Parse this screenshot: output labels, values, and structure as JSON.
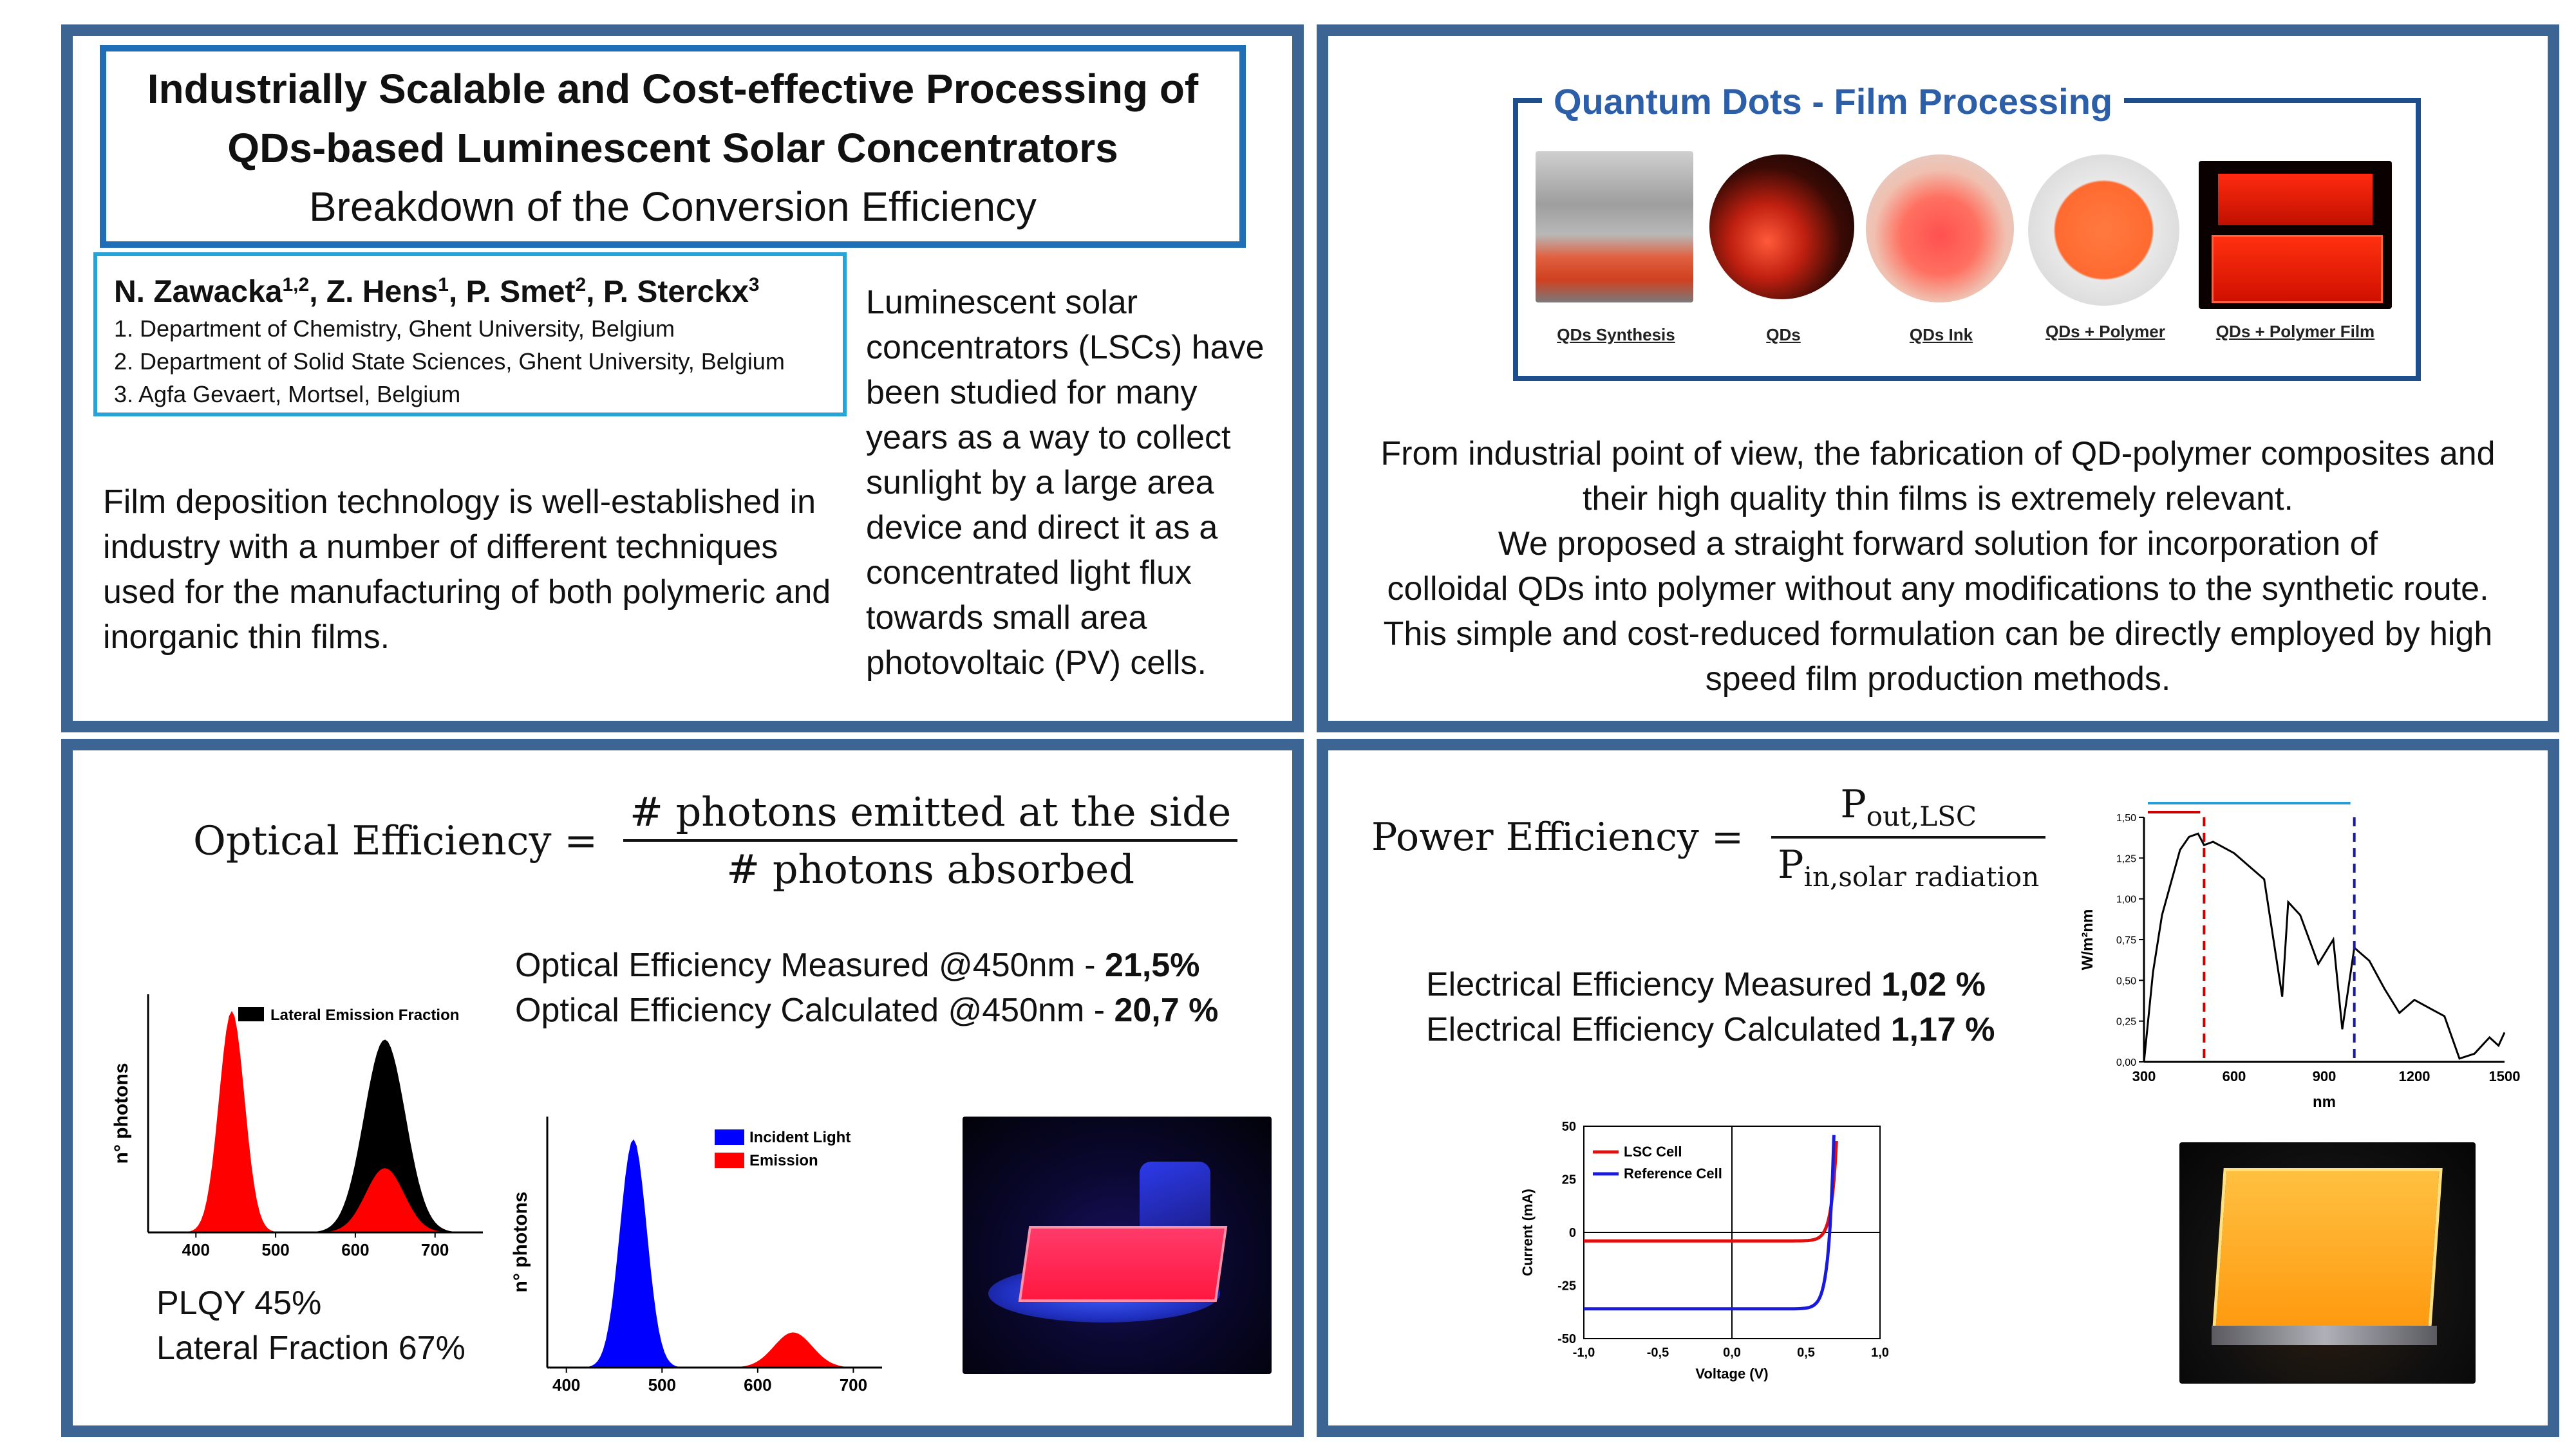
{
  "poster": {
    "title_line1": "Industrially Scalable and Cost-effective Processing of",
    "title_line2": "QDs-based Luminescent Solar Concentrators",
    "subtitle": "Breakdown of the Conversion Efficiency",
    "authors": {
      "a1": "N. Zawacka",
      "a1_sup": "1,2",
      "a2": ", Z. Hens",
      "a2_sup": "1",
      "a3": ", P. Smet",
      "a3_sup": "2",
      "a4": ", P. Sterckx",
      "a4_sup": "3"
    },
    "affiliations": [
      "1. Department of Chemistry, Ghent University, Belgium",
      "2. Department of Solid State Sciences, Ghent University, Belgium",
      "3. Agfa Gevaert, Mortsel, Belgium"
    ],
    "intro_text": "Luminescent solar concentrators (LSCs) have been studied for many years as a way to collect sunlight by a large area device and direct it as a concentrated light flux towards small area photovoltaic (PV) cells.",
    "film_text": "Film deposition technology is well-established in industry with a number of different techniques used for the manufacturing of both polymeric and inorganic thin films."
  },
  "processing": {
    "heading": "Quantum Dots - Film Processing",
    "captions": [
      "QDs Synthesis",
      "QDs",
      "QDs Ink",
      "QDs + Polymer",
      "QDs + Polymer Film"
    ],
    "text_lines": [
      "From industrial point of view, the fabrication of QD-polymer composites and",
      "their high quality thin films is extremely relevant.",
      "We proposed a straight forward solution for incorporation of",
      "colloidal QDs into polymer without any modifications to the synthetic route.",
      "This simple and cost-reduced formulation can be directly employed by high",
      "speed film production methods."
    ]
  },
  "optical": {
    "label": "Optical Efficiency =",
    "numerator": "# photons emitted at the side",
    "denominator": "# photons absorbed",
    "measured_label": "Optical Efficiency Measured @450nm - ",
    "measured_value": "21,5%",
    "calculated_label": "Optical Efficiency Calculated @450nm - ",
    "calculated_value": "20,7 %",
    "plqy": "PLQY 45%",
    "lateral": "Lateral Fraction 67%"
  },
  "power": {
    "label": "Power Efficiency =",
    "numerator_main": "P",
    "numerator_sub": "out,LSC",
    "denominator_main": "P",
    "denominator_sub": "in,solar radiation",
    "measured_label": "Electrical Efficiency Measured ",
    "measured_value": "1,02 %",
    "calculated_label": "Electrical Efficiency Calculated ",
    "calculated_value": "1,17 %"
  },
  "chart_data": [
    {
      "type": "area",
      "id": "lateral-emission",
      "ylabel": "n° photons",
      "xlabel": "",
      "xlim": [
        340,
        760
      ],
      "xticks": [
        400,
        500,
        600,
        700
      ],
      "legend": [
        "Lateral Emission Fraction"
      ],
      "series": [
        {
          "name": "",
          "peak_x": 445,
          "peak_rel": 0.93,
          "color": "#ff0000"
        },
        {
          "name": "Lateral Emission Fraction",
          "peak_x": 637,
          "peak_rel": 0.81,
          "color": "#000000"
        },
        {
          "name": "",
          "peak_x": 637,
          "peak_rel": 0.27,
          "color": "#ff0000"
        }
      ]
    },
    {
      "type": "area",
      "id": "incident-emission",
      "ylabel": "n° photons",
      "xlabel": "",
      "xlim": [
        380,
        730
      ],
      "xticks": [
        400,
        500,
        600,
        700
      ],
      "legend": [
        "Incident Light",
        "Emission"
      ],
      "series": [
        {
          "name": "Incident Light",
          "peak_x": 470,
          "peak_rel": 0.91,
          "color": "#0000ff"
        },
        {
          "name": "Emission",
          "peak_x": 637,
          "peak_rel": 0.14,
          "color": "#ff0000"
        }
      ]
    },
    {
      "type": "line",
      "id": "solar-spectrum",
      "ylabel": "W/m²nm",
      "xlabel": "nm",
      "xlim": [
        300,
        1500
      ],
      "ylim": [
        0,
        1.5
      ],
      "xticks": [
        300,
        600,
        900,
        1200,
        1500
      ],
      "yticks": [
        "0,00",
        "0,25",
        "0,50",
        "0,75",
        "1,00",
        "1,25",
        "1,50"
      ],
      "markers": [
        {
          "x": 500,
          "color": "#cc0000"
        },
        {
          "x": 1000,
          "color": "#1a1aa0"
        }
      ],
      "x": [
        300,
        330,
        360,
        390,
        420,
        450,
        480,
        500,
        530,
        560,
        600,
        650,
        700,
        760,
        780,
        820,
        880,
        930,
        960,
        1000,
        1050,
        1100,
        1150,
        1200,
        1250,
        1300,
        1350,
        1400,
        1450,
        1480,
        1500
      ],
      "values": [
        0.0,
        0.55,
        0.9,
        1.1,
        1.3,
        1.38,
        1.4,
        1.33,
        1.35,
        1.32,
        1.28,
        1.2,
        1.12,
        0.4,
        0.98,
        0.9,
        0.6,
        0.75,
        0.2,
        0.7,
        0.62,
        0.45,
        0.3,
        0.38,
        0.33,
        0.28,
        0.02,
        0.05,
        0.15,
        0.1,
        0.18
      ]
    },
    {
      "type": "line",
      "id": "iv-curve",
      "xlabel": "Voltage (V)",
      "ylabel": "Current (mA)",
      "xlim": [
        -1.0,
        1.0
      ],
      "ylim": [
        -50,
        50
      ],
      "xticks": [
        "-1,0",
        "-0,5",
        "0,0",
        "0,5",
        "1,0"
      ],
      "yticks": [
        "-50",
        "-25",
        "0",
        "25",
        "50"
      ],
      "series": [
        {
          "name": "LSC Cell",
          "color": "#e01010",
          "isc": -4,
          "voc": 0.62
        },
        {
          "name": "Reference Cell",
          "color": "#1a1adc",
          "isc": -36,
          "voc": 0.66
        }
      ]
    }
  ]
}
